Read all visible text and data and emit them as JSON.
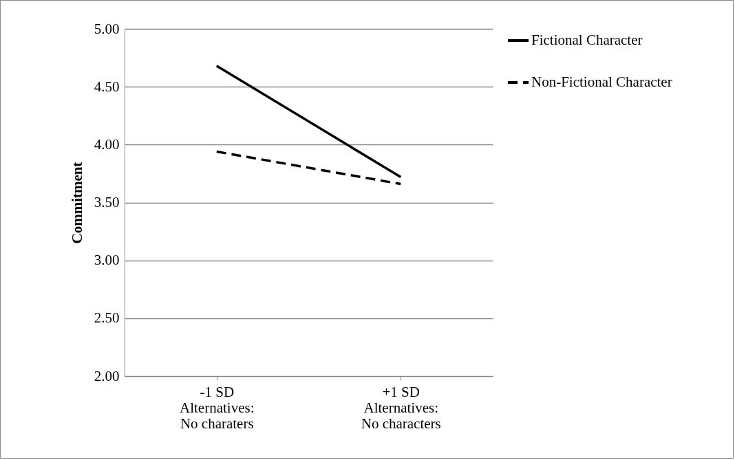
{
  "chart_data": {
    "type": "line",
    "ylabel": "Commitment",
    "categories": [
      "-1 SD\nAlternatives:\nNo charaters",
      "+1 SD\nAlternatives:\nNo characters"
    ],
    "series": [
      {
        "name": "Fictional Character",
        "color": "#000000",
        "line_style": "solid",
        "values": [
          4.68,
          3.72
        ]
      },
      {
        "name": "Non-Fictional Character",
        "color": "#000000",
        "line_style": "dashed",
        "values": [
          3.94,
          3.66
        ]
      }
    ],
    "ylim": [
      2,
      5
    ],
    "yticks": [
      {
        "value": 2,
        "label": "2.00"
      },
      {
        "value": 2.5,
        "label": "2.50"
      },
      {
        "value": 3,
        "label": "3.00"
      },
      {
        "value": 3.5,
        "label": "3.50"
      },
      {
        "value": 4,
        "label": "4.00"
      },
      {
        "value": 4.5,
        "label": "4.50"
      },
      {
        "value": 5,
        "label": "5.00"
      }
    ],
    "grid": "y",
    "legend": "right",
    "marker": "none"
  }
}
